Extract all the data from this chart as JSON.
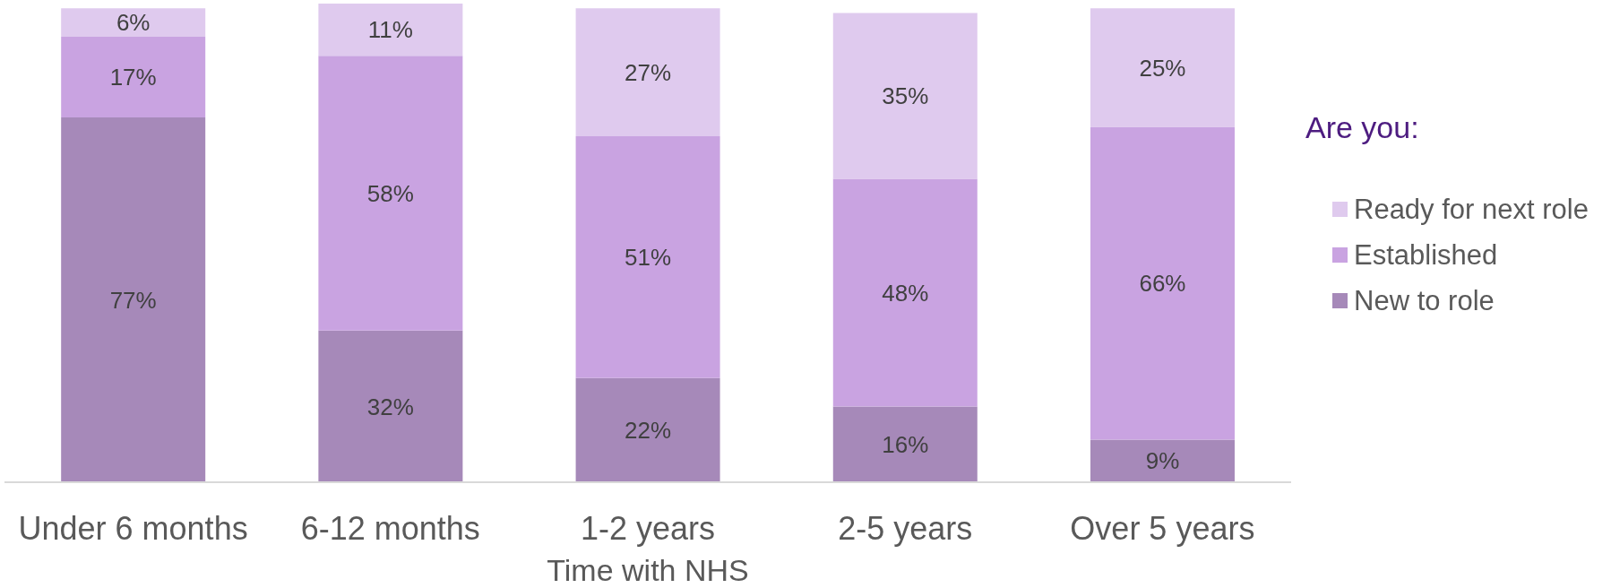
{
  "chart_data": {
    "type": "bar",
    "stacked": true,
    "xlabel": "Time with NHS",
    "legend_title": "Are you:",
    "legend": "right",
    "categories": [
      "Under 6 months",
      "6-12 months",
      "1-2 years",
      "2-5 years",
      "Over 5 years"
    ],
    "series": [
      {
        "name": "New to role",
        "color": "#a689b9",
        "values": [
          77,
          32,
          22,
          16,
          9
        ],
        "value_labels": [
          "77%",
          "32%",
          "22%",
          "16%",
          "9%"
        ]
      },
      {
        "name": "Established",
        "color": "#c9a3e1",
        "values": [
          17,
          58,
          51,
          48,
          66
        ],
        "value_labels": [
          "17%",
          "58%",
          "51%",
          "48%",
          "66%"
        ]
      },
      {
        "name": "Ready for next role",
        "color": "#dfcaee",
        "values": [
          6,
          11,
          27,
          35,
          25
        ],
        "value_labels": [
          "6%",
          "11%",
          "27%",
          "35%",
          "25%"
        ]
      }
    ]
  }
}
